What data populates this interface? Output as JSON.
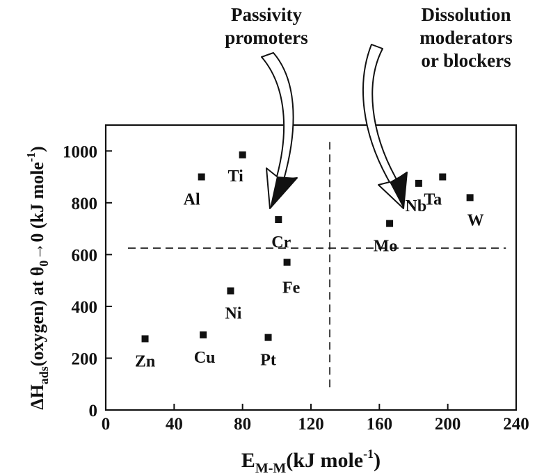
{
  "chart_data": {
    "type": "scatter",
    "title": "",
    "xlabel": {
      "base": "E",
      "sub": "M-M",
      "rest": "(kJ mole",
      "sup": "-1",
      "close": ")"
    },
    "ylabel": {
      "pre": "ΔH",
      "sub": "ads",
      "mid": "(oxygen) at θ",
      "sub2": "0",
      "post": "→0 (kJ mole",
      "sup": "-1",
      "close": ")"
    },
    "xlim": [
      0,
      240
    ],
    "ylim": [
      0,
      1100
    ],
    "x_ticks": [
      0,
      40,
      80,
      120,
      160,
      200,
      240
    ],
    "y_ticks": [
      0,
      200,
      400,
      600,
      800,
      1000
    ],
    "grid": false,
    "points": [
      {
        "label": "Zn",
        "x": 23,
        "y": 275
      },
      {
        "label": "Cu",
        "x": 57,
        "y": 290
      },
      {
        "label": "Pt",
        "x": 95,
        "y": 280
      },
      {
        "label": "Ni",
        "x": 73,
        "y": 460
      },
      {
        "label": "Fe",
        "x": 106,
        "y": 570
      },
      {
        "label": "Cr",
        "x": 101,
        "y": 735
      },
      {
        "label": "Al",
        "x": 56,
        "y": 900
      },
      {
        "label": "Ti",
        "x": 80,
        "y": 985
      },
      {
        "label": "Mo",
        "x": 166,
        "y": 720
      },
      {
        "label": "Nb",
        "x": 183,
        "y": 875
      },
      {
        "label": "Ta",
        "x": 197,
        "y": 900
      },
      {
        "label": "W",
        "x": 213,
        "y": 820
      }
    ],
    "reference_lines": {
      "horizontal_y": 625,
      "vertical_x": 131
    },
    "annotations": [
      {
        "lines": [
          "Passivity",
          "promoters"
        ]
      },
      {
        "lines": [
          "Dissolution",
          "moderators",
          "or blockers"
        ]
      }
    ]
  }
}
